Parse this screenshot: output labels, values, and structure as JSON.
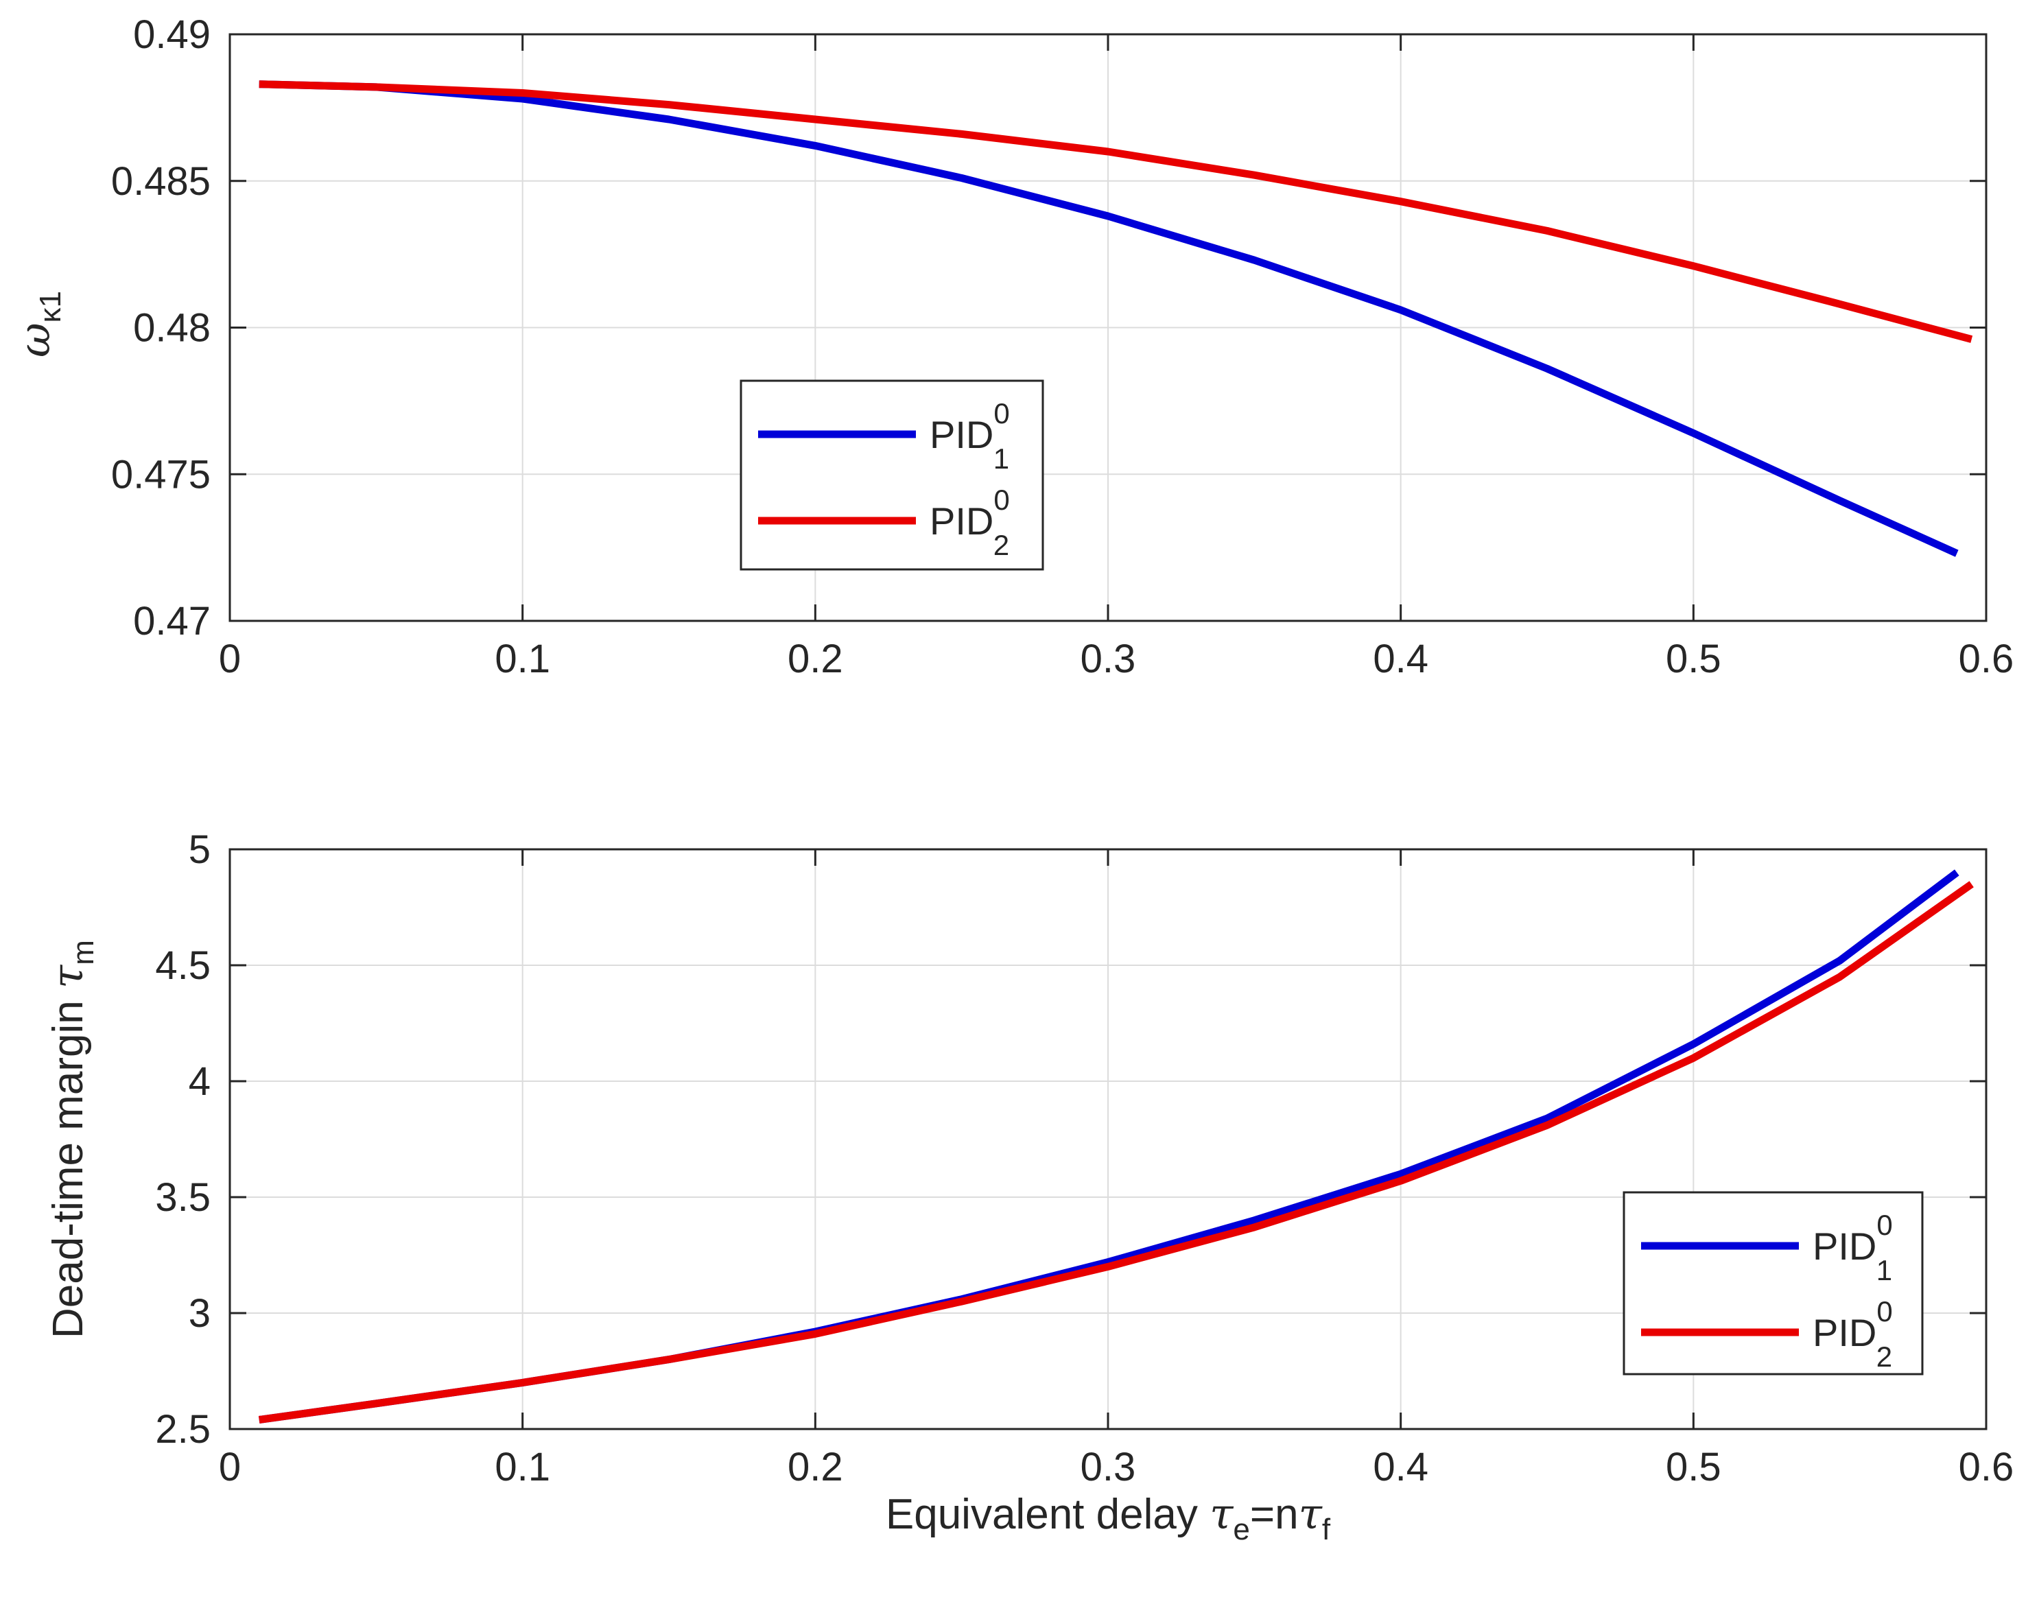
{
  "chart_data": [
    {
      "type": "line",
      "title": "",
      "xlabel": "",
      "ylabel": {
        "symbol": "ω",
        "subscript": "κ1"
      },
      "xlim": [
        0,
        0.6
      ],
      "ylim": [
        0.47,
        0.49
      ],
      "xticks": [
        0,
        0.1,
        0.2,
        0.3,
        0.4,
        0.5,
        0.6
      ],
      "xtick_labels": [
        "0",
        "0.1",
        "0.2",
        "0.3",
        "0.4",
        "0.5",
        "0.6"
      ],
      "yticks": [
        0.47,
        0.475,
        0.48,
        0.485,
        0.49
      ],
      "ytick_labels": [
        "0.47",
        "0.475",
        "0.48",
        "0.485",
        "0.49"
      ],
      "grid": true,
      "legend_position": "center-left",
      "series": [
        {
          "name": "PID",
          "sup": "0",
          "sub": "1",
          "color": "#0000d8",
          "x": [
            0.01,
            0.05,
            0.1,
            0.15,
            0.2,
            0.25,
            0.3,
            0.35,
            0.4,
            0.45,
            0.5,
            0.55,
            0.59
          ],
          "y": [
            0.4883,
            0.4882,
            0.4878,
            0.4871,
            0.4862,
            0.4851,
            0.4838,
            0.4823,
            0.4806,
            0.4786,
            0.4764,
            0.4741,
            0.4723
          ]
        },
        {
          "name": "PID",
          "sup": "0",
          "sub": "2",
          "color": "#e80000",
          "x": [
            0.01,
            0.05,
            0.1,
            0.15,
            0.2,
            0.25,
            0.3,
            0.35,
            0.4,
            0.45,
            0.5,
            0.55,
            0.595
          ],
          "y": [
            0.4883,
            0.4882,
            0.488,
            0.4876,
            0.4871,
            0.4866,
            0.486,
            0.4852,
            0.4843,
            0.4833,
            0.4821,
            0.4808,
            0.4796
          ]
        }
      ]
    },
    {
      "type": "line",
      "title": "",
      "xlabel": {
        "text": "Equivalent delay ",
        "sym1": "τ",
        "sub1": "e",
        "mid": "=n",
        "sym2": "τ",
        "sub2": "f"
      },
      "ylabel": {
        "text": "Dead-time margin ",
        "symbol": "τ",
        "subscript": "m"
      },
      "xlim": [
        0,
        0.6
      ],
      "ylim": [
        2.5,
        5
      ],
      "xticks": [
        0,
        0.1,
        0.2,
        0.3,
        0.4,
        0.5,
        0.6
      ],
      "xtick_labels": [
        "0",
        "0.1",
        "0.2",
        "0.3",
        "0.4",
        "0.5",
        "0.6"
      ],
      "yticks": [
        2.5,
        3,
        3.5,
        4,
        4.5,
        5
      ],
      "ytick_labels": [
        "2.5",
        "3",
        "3.5",
        "4",
        "4.5",
        "5"
      ],
      "grid": true,
      "legend_position": "bottom-right",
      "series": [
        {
          "name": "PID",
          "sup": "0",
          "sub": "1",
          "color": "#0000d8",
          "x": [
            0.01,
            0.05,
            0.1,
            0.15,
            0.2,
            0.25,
            0.3,
            0.35,
            0.4,
            0.45,
            0.5,
            0.55,
            0.59
          ],
          "y": [
            2.54,
            2.61,
            2.7,
            2.8,
            2.92,
            3.06,
            3.22,
            3.4,
            3.6,
            3.84,
            4.16,
            4.52,
            4.9
          ]
        },
        {
          "name": "PID",
          "sup": "0",
          "sub": "2",
          "color": "#e80000",
          "x": [
            0.01,
            0.05,
            0.1,
            0.15,
            0.2,
            0.25,
            0.3,
            0.35,
            0.4,
            0.45,
            0.5,
            0.55,
            0.595
          ],
          "y": [
            2.54,
            2.61,
            2.7,
            2.8,
            2.91,
            3.05,
            3.2,
            3.37,
            3.57,
            3.81,
            4.1,
            4.45,
            4.85
          ]
        }
      ]
    }
  ]
}
